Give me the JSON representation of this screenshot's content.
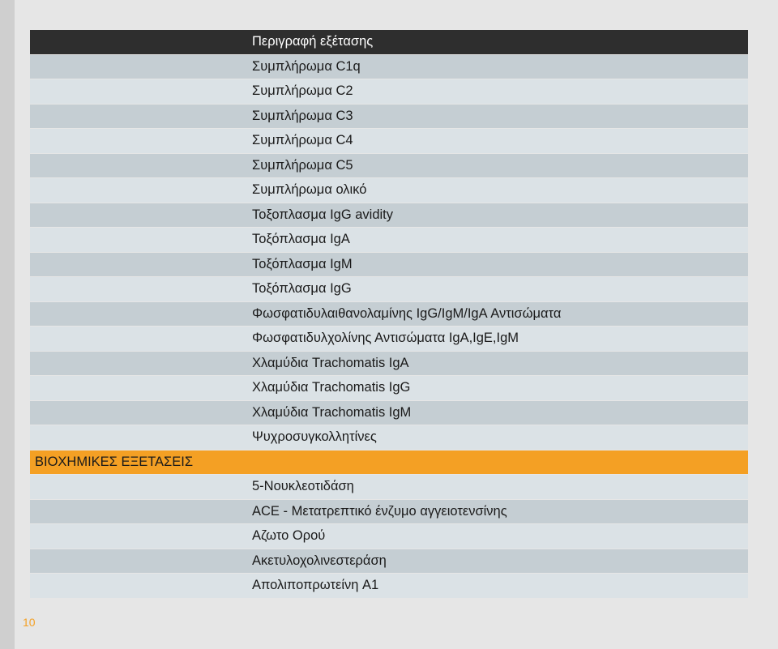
{
  "table": {
    "header": "Περιγραφή εξέτασης",
    "rows": [
      "Συμπλήρωμα C1q",
      "Συμπλήρωμα C2",
      "Συμπλήρωμα C3",
      "Συμπλήρωμα C4",
      "Συμπλήρωμα C5",
      "Συμπλήρωμα ολικό",
      "Τοξοπλασμα IgG avidity",
      "Τοξόπλασμα IgA",
      "Τοξόπλασμα IgM",
      "Τοξόπλασμα IgG",
      "Φωσφατιδυλαιθανολαμίνης IgG/IgM/IgA Αντισώματα",
      "Φωσφατιδυλχολίνης Αντισώματα IgA,IgE,IgM",
      "Χλαμύδια Trachomatis IgA",
      "Χλαμύδια Trachomatis IgG",
      "Χλαμύδια Trachomatis IgM",
      "Ψυχροσυγκολλητίνες"
    ],
    "section_label": "ΒΙΟΧΗΜΙΚΕΣ ΕΞΕΤΑΣΕΙΣ",
    "rows_after": [
      "5-Νουκλεοτιδάση",
      "ACE - Μετατρεπτικό ένζυμο αγγειοτενσίνης",
      "Αζωτο Ορού",
      "Ακετυλοχολινεστεράση",
      "Απολιποπρωτείνη A1"
    ]
  },
  "page_number": "10",
  "colors": {
    "header_bg": "#2e2e2e",
    "row_light": "#dbe2e6",
    "row_dark": "#c5ced3",
    "section_bg": "#f4a024",
    "page_number": "#f4a024"
  }
}
